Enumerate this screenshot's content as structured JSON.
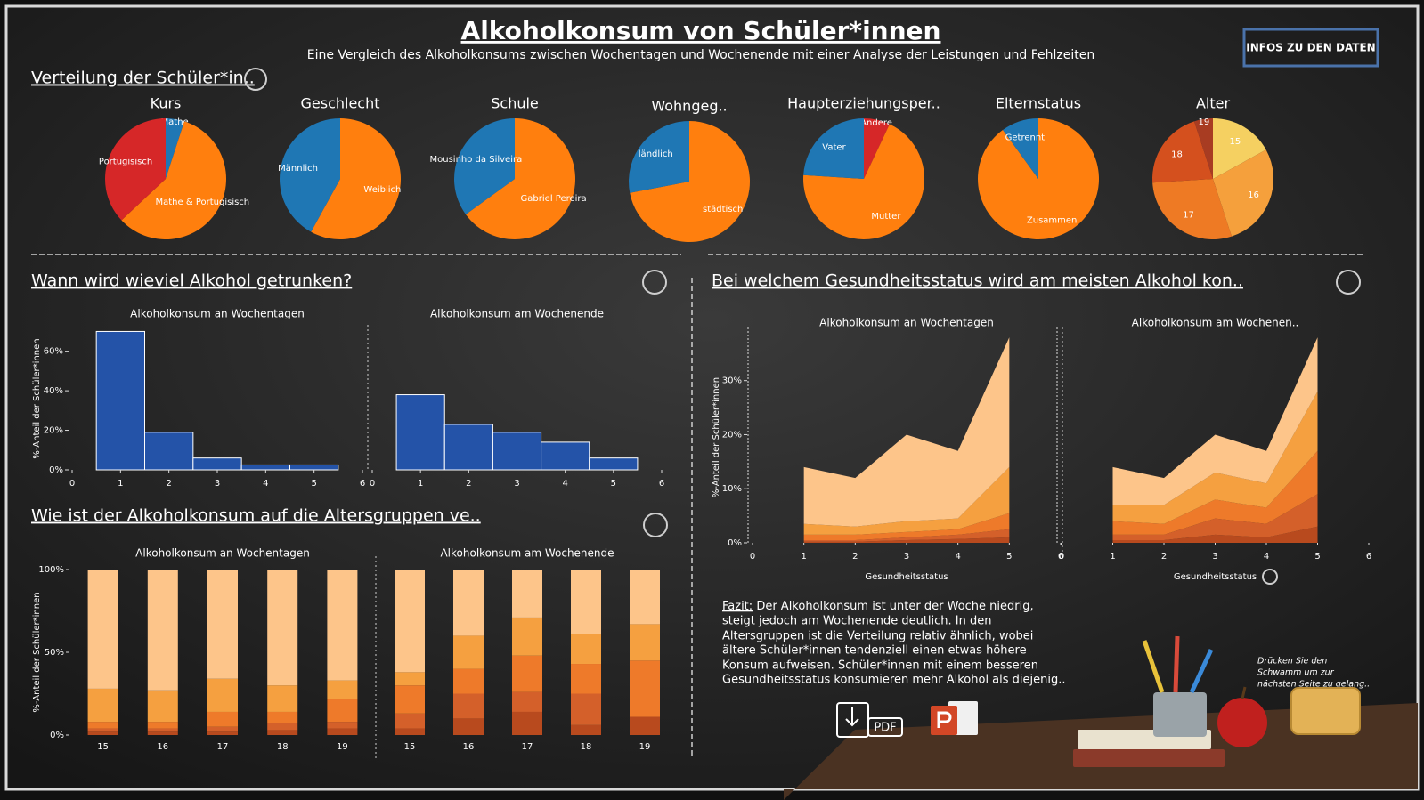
{
  "header": {
    "title": "Alkoholkonsum von Schüler*innen",
    "subtitle": "Eine Vergleich des Alkoholkonsums zwischen Wochentagen und Wochenende mit einer Analyse der Leistungen und Fehlzeiten",
    "button": "INFOS ZU DEN DATEN"
  },
  "sections": [
    "Verteilung der Schüler*in..",
    "Wann wird wieviel Alkohol getrunken?",
    "Wie ist der Alkoholkonsum auf die Altersgruppen ve..",
    "Bei welchem Gesundheitsstatus wird am meisten Alkohol kon.."
  ],
  "fazit": {
    "label": "Fazit:",
    "lines": [
      "Der Alkoholkonsum ist unter der Woche niedrig,",
      "steigt jedoch am Wochenende deutlich. In den",
      "Altersgruppen ist die Verteilung relativ ähnlich, wobei",
      "ältere Schüler*innen tendenziell einen etwas höhere",
      "Konsum aufweisen. Schüler*innen mit einem besseren",
      "Gesundheitsstatus konsumieren mehr Alkohol als diejenig.."
    ]
  },
  "hint": [
    "Drücken Sie den",
    "Schwamm um zur",
    "nächsten Seite zu gelang.."
  ],
  "pdf_label": "PDF",
  "chart_data": [
    {
      "type": "pie",
      "title": "Kurs",
      "categories": [
        "Mathe",
        "Mathe & Portugisisch",
        "Portugisisch"
      ],
      "values": [
        5,
        58,
        37
      ],
      "colors": [
        "#1f77b4",
        "#ff7f0e",
        "#d62728"
      ]
    },
    {
      "type": "pie",
      "title": "Geschlecht",
      "categories": [
        "Weiblich",
        "Männlich"
      ],
      "values": [
        58,
        42
      ],
      "colors": [
        "#ff7f0e",
        "#1f77b4"
      ]
    },
    {
      "type": "pie",
      "title": "Schule",
      "categories": [
        "Gabriel Pereira",
        "Mousinho da Silveira"
      ],
      "values": [
        65,
        35
      ],
      "colors": [
        "#ff7f0e",
        "#1f77b4"
      ]
    },
    {
      "type": "pie",
      "title": "Wohngeg..",
      "categories": [
        "städtisch",
        "ländlich"
      ],
      "values": [
        72,
        28
      ],
      "colors": [
        "#ff7f0e",
        "#1f77b4"
      ]
    },
    {
      "type": "pie",
      "title": "Haupterziehungsper..",
      "categories": [
        "Andere",
        "Mutter",
        "Vater"
      ],
      "values": [
        7,
        69,
        24
      ],
      "colors": [
        "#d62728",
        "#ff7f0e",
        "#1f77b4"
      ]
    },
    {
      "type": "pie",
      "title": "Elternstatus",
      "categories": [
        "Zusammen",
        "Getrennt"
      ],
      "values": [
        90,
        10
      ],
      "colors": [
        "#ff7f0e",
        "#1f77b4"
      ]
    },
    {
      "type": "pie",
      "title": "Alter",
      "categories": [
        "15",
        "16",
        "17",
        "18",
        "19"
      ],
      "values": [
        17,
        28,
        29,
        21,
        5
      ],
      "colors": [
        "#f5d061",
        "#f5a03c",
        "#ee7a24",
        "#d4501e",
        "#a83c22"
      ]
    },
    {
      "type": "histogram",
      "title": "Alkoholkonsum an Wochentagen",
      "ylabel": "%-Anteil der Schüler*innen",
      "bins": [
        0.5,
        1.5,
        2.5,
        3.5,
        4.5,
        5.5
      ],
      "values": [
        70,
        19,
        6,
        2.5,
        2.5
      ],
      "color": "#2453a8",
      "xlim": [
        0,
        6
      ],
      "xticks": [
        0,
        1,
        2,
        3,
        4,
        5,
        6
      ],
      "ylim": [
        0,
        72
      ],
      "yticks": [
        {
          "value": 0,
          "label": "0%"
        },
        {
          "value": 20,
          "label": "20%"
        },
        {
          "value": 40,
          "label": "40%"
        },
        {
          "value": 60,
          "label": "60%"
        }
      ]
    },
    {
      "type": "histogram",
      "title": "Alkoholkonsum am Wochenende",
      "bins": [
        0.5,
        1.5,
        2.5,
        3.5,
        4.5,
        5.5
      ],
      "values": [
        38,
        23,
        19,
        14,
        6
      ],
      "color": "#2453a8",
      "xlim": [
        0,
        6
      ],
      "xticks": [
        0,
        1,
        2,
        3,
        4,
        5,
        6
      ],
      "ylim": [
        0,
        72
      ]
    },
    {
      "type": "bar",
      "stacked": true,
      "title": "Alkoholkonsum an Wochentagen",
      "ylabel": "%-Anteil der Schüler*innen",
      "categories": [
        "15",
        "16",
        "17",
        "18",
        "19"
      ],
      "ylim": [
        0,
        100
      ],
      "yticks": [
        {
          "value": 0,
          "label": "0%"
        },
        {
          "value": 50,
          "label": "50%"
        },
        {
          "value": 100,
          "label": "100%"
        }
      ],
      "series": [
        {
          "color": "#b84a1e",
          "values": [
            2,
            2,
            2,
            3,
            4
          ]
        },
        {
          "color": "#d4602a",
          "values": [
            2,
            2,
            3,
            4,
            4
          ]
        },
        {
          "color": "#ee7a2a",
          "values": [
            4,
            4,
            9,
            7,
            14
          ]
        },
        {
          "color": "#f5a040",
          "values": [
            20,
            19,
            20,
            16,
            11
          ]
        },
        {
          "color": "#fdc58a",
          "values": [
            72,
            73,
            66,
            70,
            67
          ]
        }
      ]
    },
    {
      "type": "bar",
      "stacked": true,
      "title": "Alkoholkonsum am Wochenende",
      "categories": [
        "15",
        "16",
        "17",
        "18",
        "19"
      ],
      "ylim": [
        0,
        100
      ],
      "series": [
        {
          "color": "#b84a1e",
          "values": [
            4,
            10,
            14,
            6,
            11
          ]
        },
        {
          "color": "#d4602a",
          "values": [
            9,
            15,
            12,
            19,
            0
          ]
        },
        {
          "color": "#ee7a2a",
          "values": [
            17,
            15,
            22,
            18,
            34
          ]
        },
        {
          "color": "#f5a040",
          "values": [
            8,
            20,
            23,
            18,
            22
          ]
        },
        {
          "color": "#fdc58a",
          "values": [
            62,
            40,
            29,
            39,
            33
          ]
        }
      ]
    },
    {
      "type": "area",
      "stacked": true,
      "title": "Alkoholkonsum an Wochentagen",
      "ylabel": "%-Anteil der Schüler*innen",
      "xlabel": "Gesundheitsstatus",
      "x": [
        1,
        2,
        3,
        4,
        5
      ],
      "xlim": [
        0,
        6
      ],
      "xticks": [
        0,
        1,
        2,
        3,
        4,
        5,
        6
      ],
      "ylim": [
        0,
        39
      ],
      "yticks": [
        {
          "value": 0,
          "label": "0%"
        },
        {
          "value": 10,
          "label": "10%"
        },
        {
          "value": 20,
          "label": "20%"
        },
        {
          "value": 30,
          "label": "30%"
        }
      ],
      "series": [
        {
          "color": "#b84a1e",
          "values": [
            0.2,
            0.2,
            0.5,
            0.7,
            1
          ]
        },
        {
          "color": "#d4602a",
          "values": [
            0.3,
            0.3,
            0.5,
            0.8,
            1.5
          ]
        },
        {
          "color": "#ee7a2a",
          "values": [
            1,
            1,
            1,
            1,
            3
          ]
        },
        {
          "color": "#f5a040",
          "values": [
            2,
            1.5,
            2,
            2,
            8.5
          ]
        },
        {
          "color": "#fdc58a",
          "values": [
            10.5,
            9,
            16,
            12.5,
            24
          ]
        }
      ]
    },
    {
      "type": "area",
      "stacked": true,
      "title": "Alkoholkonsum am Wochenen..",
      "xlabel": "Gesundheitsstatus",
      "x": [
        1,
        2,
        3,
        4,
        5
      ],
      "xlim": [
        0,
        6
      ],
      "xticks": [
        0,
        1,
        2,
        3,
        4,
        5,
        6
      ],
      "ylim": [
        0,
        39
      ],
      "series": [
        {
          "color": "#b84a1e",
          "values": [
            0.5,
            0.5,
            1.5,
            1,
            3
          ]
        },
        {
          "color": "#d4602a",
          "values": [
            1,
            1,
            3,
            2.5,
            6
          ]
        },
        {
          "color": "#ee7a2a",
          "values": [
            2.5,
            2,
            3.5,
            3,
            8
          ]
        },
        {
          "color": "#f5a040",
          "values": [
            3,
            3.5,
            5,
            4.5,
            11
          ]
        },
        {
          "color": "#fdc58a",
          "values": [
            7,
            5,
            7,
            6,
            10
          ]
        }
      ]
    }
  ]
}
